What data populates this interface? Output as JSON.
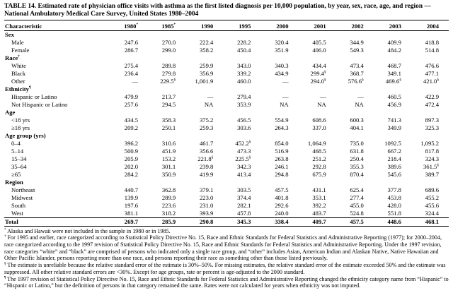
{
  "table": {
    "title": "TABLE 14. Estimated rate of physician office visits with asthma as the first listed diagnosis per 10,000 population, by year, sex, race, age, and region — National Ambulatory Medical Care Survey, United States 1980–2004",
    "columns": [
      "Characteristic",
      "1980*",
      "1985*",
      "1990",
      "1995",
      "2000",
      "2001",
      "2002",
      "2003",
      "2004"
    ],
    "rows": [
      {
        "type": "section",
        "label": "Sex"
      },
      {
        "type": "data",
        "label": "Male",
        "values": [
          "247.6",
          "270.0",
          "222.4",
          "228.2",
          "320.4",
          "405.5",
          "344.9",
          "409.9",
          "418.8"
        ]
      },
      {
        "type": "data",
        "label": "Female",
        "values": [
          "286.7",
          "299.0",
          "358.2",
          "450.4",
          "351.9",
          "406.0",
          "549.3",
          "484.2",
          "514.8"
        ]
      },
      {
        "type": "section",
        "label": "Race†"
      },
      {
        "type": "data",
        "label": "White",
        "values": [
          "275.4",
          "289.8",
          "259.9",
          "343.0",
          "340.3",
          "434.4",
          "473.4",
          "468.7",
          "476.6"
        ]
      },
      {
        "type": "data",
        "label": "Black",
        "values": [
          "236.4",
          "279.8",
          "356.9",
          "339.2",
          "434.9",
          "299.4§",
          "368.7",
          "349.1",
          "477.1"
        ]
      },
      {
        "type": "data",
        "label": "Other",
        "values": [
          "—",
          "229.5§",
          "1,001.9",
          "460.0",
          "—",
          "294.0§",
          "576.6§",
          "469.6§",
          "421.0§"
        ]
      },
      {
        "type": "section",
        "label": "Ethnicity¶"
      },
      {
        "type": "data",
        "label": "Hispanic or Latino",
        "values": [
          "479.9",
          "213.7",
          "—",
          "279.4",
          "—",
          "—",
          "—",
          "460.5",
          "422.9"
        ]
      },
      {
        "type": "data",
        "label": "Not Hispanic or Latino",
        "values": [
          "257.6",
          "294.5",
          "NA",
          "353.9",
          "NA",
          "NA",
          "NA",
          "456.9",
          "472.4"
        ]
      },
      {
        "type": "section",
        "label": "Age"
      },
      {
        "type": "data",
        "label": "<18 yrs",
        "values": [
          "434.5",
          "358.3",
          "375.2",
          "456.5",
          "554.9",
          "608.6",
          "600.3",
          "741.3",
          "897.3"
        ]
      },
      {
        "type": "data",
        "label": "≥18 yrs",
        "values": [
          "209.2",
          "250.1",
          "259.3",
          "303.6",
          "264.3",
          "337.0",
          "404.1",
          "349.9",
          "325.3"
        ]
      },
      {
        "type": "section",
        "label": "Age group (yrs)"
      },
      {
        "type": "data",
        "label": "0–4",
        "values": [
          "396.2",
          "310.6",
          "461.7",
          "452.2§",
          "854.0",
          "1,064.9",
          "735.0",
          "1092.5",
          "1,095.2"
        ]
      },
      {
        "type": "data",
        "label": "5–14",
        "values": [
          "500.9",
          "451.9",
          "356.6",
          "473.3",
          "516.9",
          "468.5",
          "631.8",
          "667.2",
          "817.8"
        ]
      },
      {
        "type": "data",
        "label": "15–34",
        "values": [
          "205.9",
          "153.2",
          "221.8§",
          "225.5§",
          "263.8",
          "251.2",
          "250.4",
          "218.4",
          "324.3"
        ]
      },
      {
        "type": "data",
        "label": "35–64",
        "values": [
          "202.0",
          "301.1",
          "239.8",
          "342.3",
          "246.1",
          "292.8",
          "355.3",
          "389.6",
          "361.5§"
        ]
      },
      {
        "type": "data",
        "label": "≥65",
        "values": [
          "284.2",
          "350.9",
          "419.9",
          "413.4",
          "294.8",
          "675.9",
          "870.4",
          "545.6",
          "389.7"
        ]
      },
      {
        "type": "section",
        "label": "Region"
      },
      {
        "type": "data",
        "label": "Northeast",
        "values": [
          "440.7",
          "362.8",
          "379.1",
          "303.5",
          "457.5",
          "431.1",
          "625.4",
          "377.8",
          "689.6"
        ]
      },
      {
        "type": "data",
        "label": "Midwest",
        "values": [
          "139.9",
          "289.9",
          "223.0",
          "374.4",
          "401.8",
          "353.1",
          "277.4",
          "453.8",
          "455.2"
        ]
      },
      {
        "type": "data",
        "label": "South",
        "values": [
          "197.6",
          "223.6",
          "231.0",
          "282.1",
          "292.6",
          "392.2",
          "455.0",
          "428.0",
          "455.6"
        ]
      },
      {
        "type": "data",
        "label": "West",
        "values": [
          "381.1",
          "318.2",
          "393.9",
          "457.8",
          "240.0",
          "483.7",
          "524.8",
          "551.8",
          "324.4"
        ]
      },
      {
        "type": "total",
        "label": "Total",
        "values": [
          "269.7",
          "285.9",
          "290.8",
          "345.3",
          "338.4",
          "409.7",
          "457.5",
          "448.6",
          "468.1"
        ]
      }
    ],
    "footnotes": [
      {
        "marker": "*",
        "text": "Alaska and Hawaii were not included in the sample in 1980 or in 1985."
      },
      {
        "marker": "†",
        "text": "For 1995 and earlier, race categorized according to Statistical Policy Directive No. 15, Race and Ethnic Standards for Federal Statistics and Administrative Reporting (1977); for 2000–2004, race categorized according to the 1997 revision of Statistical Policy Directive No. 15, Race and Ethnic Standards for Federal Statistics and Administrative Reporting. Under the 1997 revision, race categories “white” and “black” are comprised of persons who indicated only a single race group, and “other” includes Asian, American Indian and Alaskan Native, Native Hawaiian and Other Pacific Islander, persons reporting more than one race, and persons reporting their race as something other than those listed previously."
      },
      {
        "marker": "§",
        "text": "The estimate is unreliable because the relative standard error of the estimate is 30%–50%. For missing estimates, the relative standard error of the estimate exceeded 50% and the estimate was suppressed. All other relative standard errors are <30%. Except for age groups, rate or percent is age-adjusted to the 2000 standard."
      },
      {
        "marker": "¶",
        "text": "The 1997 revision of Statistical Policy Directive No. 15, Race and Ethnic Standards for Federal Statistics and Administrative Reporting changed the ethnicity category name from “Hispanic” to “Hispanic or Latino,” but the definition of persons in that category remained the same. Rates were not calculated for years when ethnicity was not imputed."
      }
    ]
  }
}
